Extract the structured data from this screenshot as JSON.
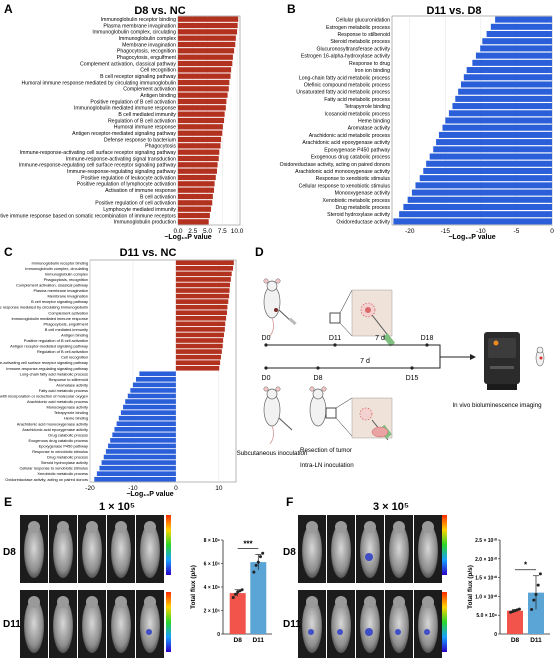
{
  "panels": {
    "A": {
      "letter": "A",
      "title": "D8 vs. NC"
    },
    "B": {
      "letter": "B",
      "title": "D11 vs. D8"
    },
    "C": {
      "letter": "C",
      "title": "D11 vs. NC"
    },
    "D": {
      "letter": "D"
    },
    "E": {
      "letter": "E",
      "title": "1 × 10⁵"
    },
    "F": {
      "letter": "F",
      "title": "3 × 10⁵"
    }
  },
  "axis_label_text": "−Log₁₀P value",
  "colors": {
    "up": "#b3311f",
    "down": "#2b5fd9",
    "d8_bar": "#f2544b",
    "d11_bar": "#5aa5d6"
  },
  "chart_data": [
    {
      "id": "A",
      "type": "bar",
      "orientation": "horizontal",
      "title": "D8 vs. NC",
      "xlabel": "−Log10P value",
      "xlim": [
        0,
        10.5
      ],
      "xticks": [
        "0.0",
        "2.5",
        "5.0",
        "7.5",
        "10.0"
      ],
      "categories": [
        "Immunoglobulin receptor binding",
        "Plasma membrane invagination",
        "Immunoglobulin complex, circulating",
        "Immunoglobulin complex",
        "Membrane invagination",
        "Phagocytosis, recognition",
        "Phagocytosis, engulfment",
        "Complement activation, classical pathway",
        "Cell recognition",
        "B cell receptor signaling pathway",
        "Humoral immune response mediated by circulating immunoglobulin",
        "Complement activation",
        "Antigen binding",
        "Positive regulation of B cell activation",
        "Immunoglobulin mediated immune response",
        "B cell mediated immunity",
        "Regulation of B cell activation",
        "Humoral immune response",
        "Antigen receptor-mediated signaling pathway",
        "Defense response to bacterium",
        "Phagocytosis",
        "Immune-response-activating cell surface receptor signaling pathway",
        "Immune-response-activating signal transduction",
        "Immune-response-regulating cell surface receptor signaling pathway",
        "Immune-response-regulating signaling pathway",
        "Positive regulation of leukocyte activation",
        "Positive regulation of lymphocyte activation",
        "Activation of immune response",
        "B cell activation",
        "Positive regulation of cell activation",
        "Lymphocyte mediated immunity",
        "Adaptive immune response based on somatic recombination of immune receptors",
        "Immunoglobulin production"
      ],
      "values": [
        10.2,
        10.1,
        10.0,
        9.8,
        9.7,
        9.5,
        9.3,
        9.2,
        9.0,
        8.9,
        8.7,
        8.6,
        8.4,
        8.2,
        8.1,
        7.9,
        7.8,
        7.6,
        7.5,
        7.3,
        7.2,
        7.0,
        6.9,
        6.7,
        6.6,
        6.4,
        6.2,
        6.1,
        5.9,
        5.8,
        5.6,
        5.4,
        5.2
      ]
    },
    {
      "id": "B",
      "type": "bar",
      "orientation": "horizontal",
      "title": "D11 vs. D8",
      "xlabel": "−Log10P value",
      "xlim": [
        -22.5,
        0
      ],
      "xticks": [
        "-20",
        "-15",
        "-10",
        "-5",
        "0"
      ],
      "categories": [
        "Cellular glucuronidation",
        "Estrogen metabolic process",
        "Response to stilbenoid",
        "Steroid metabolic process",
        "Glucuronosyltransferase activity",
        "Estrogen 16-alpha-hydroxylase activity",
        "Response to drug",
        "Iron ion binding",
        "Long-chain fatty acid metabolic process",
        "Olefinic compound metabolic process",
        "Unsaturated fatty acid metabolic process",
        "Fatty acid metabolic process",
        "Tetrapyrrole binding",
        "Icosanoid metabolic process",
        "Heme binding",
        "Aromatase activity",
        "Arachidonic acid metabolic process",
        "Arachidonic acid epoxygenase activity",
        "Epoxygenase P450 pathway",
        "Exogenous drug catabolic process",
        "Oxidoreductase activity, acting on paired donors",
        "Arachidonic acid monooxygenase activity",
        "Response to xenobiotic stimulus",
        "Cellular response to xenobiotic stimulus",
        "Monooxygenase activity",
        "Xenobiotic metabolic process",
        "Drug metabolic process",
        "Steroid hydroxylase activity",
        "Oxidoreductase activity"
      ],
      "values": [
        -8.0,
        -8.6,
        -9.2,
        -9.8,
        -10.1,
        -10.7,
        -11.2,
        -12.0,
        -12.4,
        -12.8,
        -13.2,
        -13.6,
        -14.0,
        -14.5,
        -15.0,
        -15.4,
        -15.9,
        -16.3,
        -16.7,
        -17.2,
        -17.7,
        -18.1,
        -18.6,
        -19.2,
        -19.7,
        -20.3,
        -20.9,
        -21.5,
        -22.3
      ]
    },
    {
      "id": "C",
      "type": "bar",
      "orientation": "horizontal",
      "title": "D11 vs. NC",
      "xlabel": "−Log10P value",
      "xlim": [
        -20,
        14
      ],
      "xticks": [
        "-20",
        "-10",
        "0",
        "10"
      ],
      "categories": [
        "Immunoglobulin receptor binding",
        "Immunoglobulin complex, circulating",
        "Immunoglobulin complex",
        "Phagocytosis, recognition",
        "Complement activation, classical pathway",
        "Plasma membrane invagination",
        "Membrane invagination",
        "B cell receptor signaling pathway",
        "Humoral immune response mediated by circulating immunoglobulin",
        "Complement activation",
        "Immunoglobulin mediated immune response",
        "Phagocytosis, engulfment",
        "B cell mediated immunity",
        "Antigen binding",
        "Positive regulation of B cell activation",
        "Antigen receptor-mediated signaling pathway",
        "Regulation of B cell activation",
        "Cell recognition",
        "Immune response-activating cell surface receptor signaling pathway",
        "Immune-response-regulating signaling pathway",
        "Long-chain fatty acid metabolic process",
        "Response to stilbenoid",
        "Aromatase activity",
        "Fatty acid metabolic process",
        "Oxidoreductase activity, acting on paired donors, with incorporation or reduction of molecular oxygen",
        "Arachidonic acid metabolic process",
        "Monooxygenase activity",
        "Tetrapyrrole binding",
        "Heme binding",
        "Arachidonic acid monooxygenase activity",
        "Arachidonic acid epoxygenase activity",
        "Drug catabolic process",
        "Exogenous drug catabolic process",
        "Epoxygenase P450 pathway",
        "Response to xenobiotic stimulus",
        "Drug metabolic process",
        "Steroid hydroxylase activity",
        "Cellular response to xenobiotic stimulus",
        "Xenobiotic metabolic process",
        "Oxidoreductase activity, acting on paired donors"
      ],
      "values": [
        13.5,
        13.3,
        13.0,
        12.8,
        12.6,
        12.5,
        12.4,
        12.2,
        12.0,
        11.9,
        11.7,
        11.5,
        11.4,
        11.2,
        11.0,
        10.9,
        10.7,
        10.5,
        10.3,
        10.1,
        -8.5,
        -9.3,
        -10.0,
        -10.6,
        -11.2,
        -11.8,
        -12.3,
        -12.8,
        -13.3,
        -13.8,
        -14.3,
        -14.8,
        -15.3,
        -15.8,
        -16.3,
        -16.8,
        -17.3,
        -17.8,
        -18.4,
        -19.0
      ]
    },
    {
      "id": "E",
      "type": "bar",
      "title": "1 × 10⁵",
      "categories": [
        "D8",
        "D11"
      ],
      "values": [
        3.7,
        6.5
      ],
      "errors": [
        0.3,
        0.7
      ],
      "points": [
        [
          3.3,
          3.6,
          3.8,
          3.9,
          4.0
        ],
        [
          5.6,
          6.2,
          6.5,
          7.0,
          7.3
        ]
      ],
      "ylabel": "Total flux (p/s)",
      "yunit": "× 10⁶",
      "yticks": [
        "0",
        "2 × 10⁶",
        "4 × 10⁶",
        "6 × 10⁶",
        "8 × 10⁶"
      ],
      "ylim": [
        0,
        8.5
      ],
      "significance": "***"
    },
    {
      "id": "F",
      "type": "bar",
      "title": "3 × 10⁵",
      "categories": [
        "D8",
        "D11"
      ],
      "values": [
        0.62,
        1.1
      ],
      "errors": [
        0.03,
        0.45
      ],
      "points": [
        [
          0.58,
          0.6,
          0.62,
          0.64,
          0.66
        ],
        [
          0.65,
          0.9,
          1.05,
          1.3,
          1.6
        ]
      ],
      "ylabel": "Total flux (p/s)",
      "yunit": "× 10¹⁰",
      "yticks": [
        "0",
        "5.0 × 10⁹",
        "1.0 × 10¹⁰",
        "1.5 × 10¹⁰",
        "2.0 × 10¹⁰",
        "2.5 × 10¹⁰"
      ],
      "ylim": [
        0,
        2.5
      ],
      "significance": "*"
    }
  ],
  "diagram": {
    "timeline1": {
      "days": [
        "D0",
        "D11",
        "D18"
      ],
      "interval": "7 d"
    },
    "timeline2": {
      "days": [
        "D0",
        "D8",
        "D15"
      ],
      "interval": "7 d"
    },
    "labels": {
      "subcutaneous": "Subcutaneous inoculation",
      "resection": "Resection of tumor",
      "intra_ln": "Intra-LN inoculation",
      "imaging": "In vivo bioluminescence imaging"
    }
  },
  "image_rows": {
    "row1": "D8",
    "row2": "D11"
  }
}
